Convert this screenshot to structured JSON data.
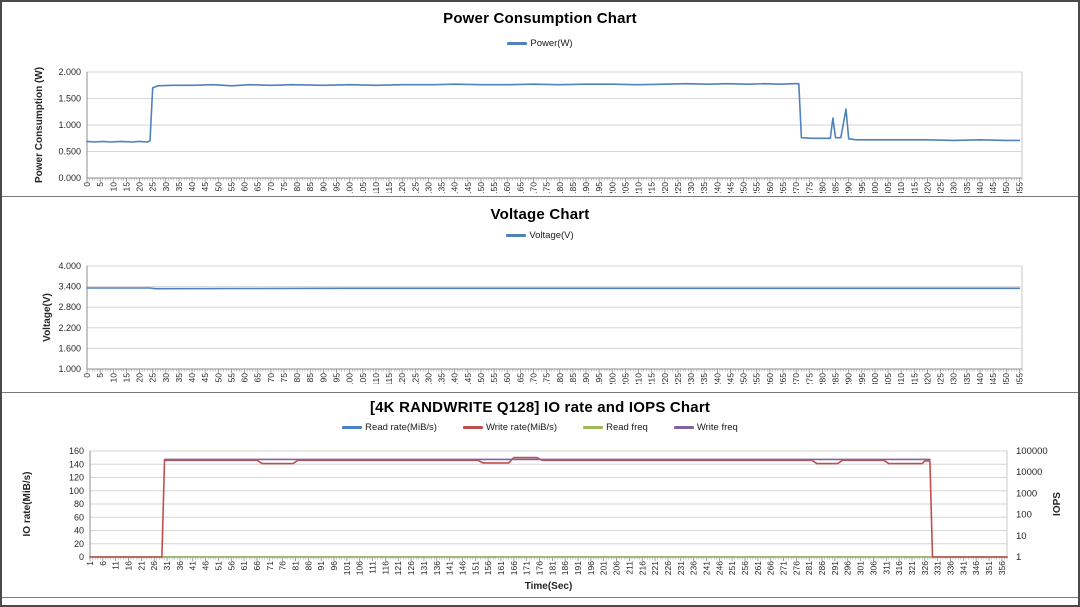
{
  "page": {
    "background": "#ffffff",
    "border_color": "#4a4a4a"
  },
  "colors": {
    "series_blue": "#4F81BD",
    "series_red": "#C0504D",
    "series_olive": "#9BBB59",
    "series_purple": "#8064A2",
    "gridline": "#D6D6D6",
    "axis_line": "#8C8C8C",
    "tick_text": "#262626"
  },
  "chart_data": [
    {
      "type": "line",
      "title": "Power Consumption Chart",
      "x_axis": {
        "min": 0,
        "max": 356,
        "tick_start": 0,
        "tick_end": 355,
        "tick_step": 5,
        "title": ""
      },
      "y_axis": {
        "title": "Power Consumption (W)",
        "min": 0,
        "max": 2,
        "ticks": [
          {
            "v": 0,
            "label": "0.000"
          },
          {
            "v": 0.5,
            "label": "0.500"
          },
          {
            "v": 1.0,
            "label": "1.000"
          },
          {
            "v": 1.5,
            "label": "1.500"
          },
          {
            "v": 2.0,
            "label": "2.000"
          }
        ]
      },
      "legend": [
        {
          "label": "Power(W)",
          "color": "#4F81BD"
        }
      ],
      "series": [
        {
          "name": "Power(W)",
          "color": "#4F81BD",
          "axis": "left",
          "points": [
            [
              0,
              0.69
            ],
            [
              3,
              0.68
            ],
            [
              6,
              0.69
            ],
            [
              9,
              0.68
            ],
            [
              13,
              0.69
            ],
            [
              17,
              0.68
            ],
            [
              20,
              0.69
            ],
            [
              23,
              0.68
            ],
            [
              24,
              0.7
            ],
            [
              25,
              1.7
            ],
            [
              27,
              1.74
            ],
            [
              32,
              1.75
            ],
            [
              40,
              1.75
            ],
            [
              48,
              1.76
            ],
            [
              55,
              1.74
            ],
            [
              62,
              1.76
            ],
            [
              70,
              1.75
            ],
            [
              78,
              1.76
            ],
            [
              90,
              1.75
            ],
            [
              100,
              1.76
            ],
            [
              110,
              1.75
            ],
            [
              120,
              1.76
            ],
            [
              132,
              1.76
            ],
            [
              140,
              1.77
            ],
            [
              150,
              1.76
            ],
            [
              160,
              1.76
            ],
            [
              170,
              1.77
            ],
            [
              180,
              1.76
            ],
            [
              190,
              1.77
            ],
            [
              200,
              1.77
            ],
            [
              210,
              1.76
            ],
            [
              220,
              1.77
            ],
            [
              228,
              1.78
            ],
            [
              236,
              1.77
            ],
            [
              244,
              1.78
            ],
            [
              252,
              1.77
            ],
            [
              258,
              1.78
            ],
            [
              264,
              1.77
            ],
            [
              269,
              1.78
            ],
            [
              271,
              1.78
            ],
            [
              272,
              0.76
            ],
            [
              276,
              0.75
            ],
            [
              280,
              0.75
            ],
            [
              283,
              0.75
            ],
            [
              284,
              1.13
            ],
            [
              285,
              0.76
            ],
            [
              287,
              0.76
            ],
            [
              289,
              1.3
            ],
            [
              290,
              0.74
            ],
            [
              293,
              0.72
            ],
            [
              300,
              0.72
            ],
            [
              310,
              0.72
            ],
            [
              320,
              0.72
            ],
            [
              330,
              0.71
            ],
            [
              340,
              0.72
            ],
            [
              350,
              0.71
            ],
            [
              355,
              0.71
            ]
          ]
        }
      ]
    },
    {
      "type": "line",
      "title": "Voltage Chart",
      "x_axis": {
        "min": 0,
        "max": 356,
        "tick_start": 0,
        "tick_end": 355,
        "tick_step": 5,
        "title": ""
      },
      "y_axis": {
        "title": "Voltage(V)",
        "min": 1,
        "max": 4,
        "ticks": [
          {
            "v": 1.0,
            "label": "1.000"
          },
          {
            "v": 1.6,
            "label": "1.600"
          },
          {
            "v": 2.2,
            "label": "2.200"
          },
          {
            "v": 2.8,
            "label": "2.800"
          },
          {
            "v": 3.4,
            "label": "3.400"
          },
          {
            "v": 4.0,
            "label": "4.000"
          }
        ]
      },
      "legend": [
        {
          "label": "Voltage(V)",
          "color": "#4F81BD"
        }
      ],
      "series": [
        {
          "name": "Voltage(V)",
          "color": "#4F81BD",
          "axis": "left",
          "points": [
            [
              0,
              3.36
            ],
            [
              24,
              3.36
            ],
            [
              26,
              3.34
            ],
            [
              100,
              3.35
            ],
            [
              200,
              3.35
            ],
            [
              300,
              3.35
            ],
            [
              355,
              3.35
            ]
          ]
        }
      ]
    },
    {
      "type": "line",
      "title": "[4K RANDWRITE Q128] IO rate and IOPS Chart",
      "x_axis": {
        "min": 1,
        "max": 358,
        "tick_start": 1,
        "tick_end": 356,
        "tick_step": 5,
        "title": "Time(Sec)"
      },
      "y_axis": {
        "title": "IO rate(MiB/s)",
        "min": 0,
        "max": 160,
        "ticks": [
          {
            "v": 0,
            "label": "0"
          },
          {
            "v": 20,
            "label": "20"
          },
          {
            "v": 40,
            "label": "40"
          },
          {
            "v": 60,
            "label": "60"
          },
          {
            "v": 80,
            "label": "80"
          },
          {
            "v": 100,
            "label": "100"
          },
          {
            "v": 120,
            "label": "120"
          },
          {
            "v": 140,
            "label": "140"
          },
          {
            "v": 160,
            "label": "160"
          }
        ]
      },
      "y2_axis": {
        "title": "IOPS",
        "min": 1,
        "max": 100000,
        "scale": "log",
        "ticks": [
          {
            "v": 1,
            "label": "1"
          },
          {
            "v": 10,
            "label": "10"
          },
          {
            "v": 100,
            "label": "100"
          },
          {
            "v": 1000,
            "label": "1000"
          },
          {
            "v": 10000,
            "label": "10000"
          },
          {
            "v": 100000,
            "label": "100000"
          }
        ]
      },
      "legend": [
        {
          "label": "Read rate(MiB/s)",
          "color": "#4F81BD"
        },
        {
          "label": "Write rate(MiB/s)",
          "color": "#C0504D"
        },
        {
          "label": "Read freq",
          "color": "#9BBB59"
        },
        {
          "label": "Write freq",
          "color": "#8064A2"
        }
      ],
      "series": [
        {
          "name": "Read rate(MiB/s)",
          "color": "#4F81BD",
          "axis": "left",
          "points": [
            [
              1,
              0
            ],
            [
              358,
              0
            ]
          ]
        },
        {
          "name": "Read freq",
          "color": "#9BBB59",
          "axis": "right",
          "points": [
            [
              1,
              1
            ],
            [
              358,
              1
            ]
          ]
        },
        {
          "name": "Write rate(MiB/s)",
          "color": "#C0504D",
          "axis": "left",
          "points": [
            [
              1,
              0
            ],
            [
              29,
              0
            ],
            [
              30,
              146
            ],
            [
              50,
              146
            ],
            [
              66,
              146
            ],
            [
              68,
              141
            ],
            [
              80,
              141
            ],
            [
              82,
              146
            ],
            [
              120,
              146
            ],
            [
              152,
              146
            ],
            [
              154,
              142
            ],
            [
              164,
              142
            ],
            [
              166,
              150
            ],
            [
              175,
              150
            ],
            [
              177,
              146
            ],
            [
              220,
              146
            ],
            [
              260,
              146
            ],
            [
              282,
              146
            ],
            [
              284,
              141
            ],
            [
              292,
              141
            ],
            [
              294,
              146
            ],
            [
              310,
              146
            ],
            [
              312,
              141
            ],
            [
              325,
              141
            ],
            [
              326,
              145
            ],
            [
              328,
              145
            ],
            [
              329,
              0
            ],
            [
              358,
              0
            ]
          ]
        },
        {
          "name": "Write freq",
          "color": "#8064A2",
          "axis": "right",
          "points": [
            [
              30,
              40000
            ],
            [
              328,
              40000
            ]
          ]
        }
      ]
    }
  ]
}
